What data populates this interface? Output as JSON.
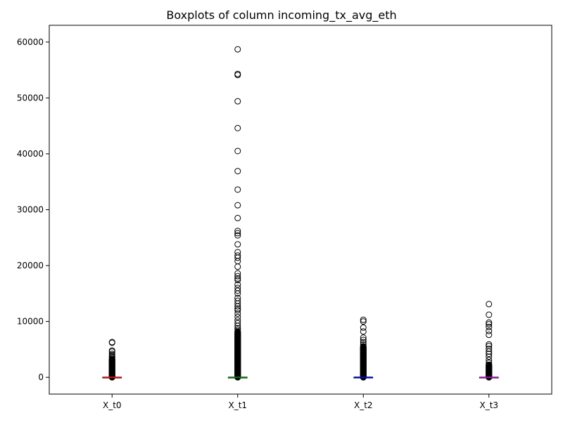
{
  "chart_data": {
    "type": "box",
    "title": "Boxplots of column incoming_tx_avg_eth",
    "xlabel": "",
    "ylabel": "",
    "ylim": [
      -3000,
      63000
    ],
    "yticks": [
      0,
      10000,
      20000,
      30000,
      40000,
      50000,
      60000
    ],
    "grid": false,
    "categories": [
      "X_t0",
      "X_t1",
      "X_t2",
      "X_t3"
    ],
    "series": [
      {
        "label": "X_t0",
        "color": "#ff0000",
        "box": {
          "q1": 0,
          "median": 0,
          "q3": 10,
          "whisker_low": 0,
          "whisker_high": 40
        },
        "outlier_dense_range": [
          0,
          3300
        ],
        "outliers": [
          3500,
          3700,
          4000,
          4200,
          4600,
          4800,
          6200,
          6300
        ]
      },
      {
        "label": "X_t1",
        "color": "#008000",
        "box": {
          "q1": 0,
          "median": 0,
          "q3": 10,
          "whisker_low": 0,
          "whisker_high": 40
        },
        "outlier_dense_range": [
          0,
          8200
        ],
        "outliers": [
          8500,
          8800,
          9200,
          9700,
          10200,
          10800,
          11400,
          12000,
          12300,
          12700,
          13200,
          13700,
          14200,
          15000,
          15500,
          16000,
          16600,
          17400,
          17700,
          18100,
          18600,
          19800,
          20800,
          21400,
          21800,
          22400,
          23800,
          25400,
          25800,
          26200,
          28500,
          30800,
          33600,
          36900,
          40500,
          44600,
          49400,
          54100,
          54300,
          58700
        ]
      },
      {
        "label": "X_t2",
        "color": "#0000ff",
        "box": {
          "q1": 0,
          "median": 0,
          "q3": 10,
          "whisker_low": 0,
          "whisker_high": 40
        },
        "outlier_dense_range": [
          0,
          5600
        ],
        "outliers": [
          5900,
          6300,
          6700,
          7100,
          8200,
          8900,
          10000,
          10300
        ]
      },
      {
        "label": "X_t3",
        "color": "#bf00bf",
        "box": {
          "q1": 0,
          "median": 0,
          "q3": 10,
          "whisker_low": 0,
          "whisker_high": 40
        },
        "outlier_dense_range": [
          0,
          2300
        ],
        "outliers": [
          2600,
          3100,
          3700,
          4200,
          4600,
          5100,
          5600,
          5900,
          7600,
          8300,
          9000,
          9500,
          9800,
          11200,
          13100
        ]
      }
    ]
  }
}
